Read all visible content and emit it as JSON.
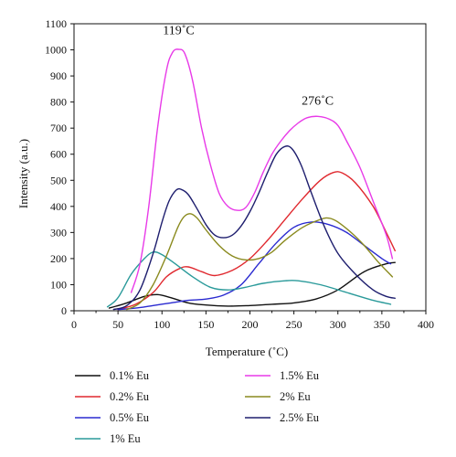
{
  "chart_data": {
    "type": "line",
    "xlabel": "Temperature (˚C)",
    "ylabel": "Intensity (a.u.)",
    "xlim": [
      0,
      400
    ],
    "ylim": [
      0,
      1100
    ],
    "xticks": [
      0,
      50,
      100,
      150,
      200,
      250,
      300,
      350,
      400
    ],
    "yticks": [
      0,
      100,
      200,
      300,
      400,
      500,
      600,
      700,
      800,
      900,
      1000,
      1100
    ],
    "grid": false,
    "legend_position": "bottom",
    "annotations": [
      {
        "text": "119˚C",
        "x": 119,
        "y": 1060
      },
      {
        "text": "276˚C",
        "x": 277,
        "y": 790
      }
    ],
    "series": [
      {
        "name": "0.1% Eu",
        "color": "#111111",
        "points": [
          [
            40,
            10
          ],
          [
            60,
            30
          ],
          [
            80,
            55
          ],
          [
            95,
            62
          ],
          [
            110,
            50
          ],
          [
            130,
            30
          ],
          [
            150,
            22
          ],
          [
            175,
            18
          ],
          [
            200,
            20
          ],
          [
            225,
            25
          ],
          [
            250,
            30
          ],
          [
            275,
            45
          ],
          [
            300,
            80
          ],
          [
            330,
            150
          ],
          [
            355,
            180
          ],
          [
            365,
            185
          ]
        ]
      },
      {
        "name": "0.2% Eu",
        "color": "#e0282e",
        "points": [
          [
            50,
            5
          ],
          [
            70,
            25
          ],
          [
            90,
            70
          ],
          [
            105,
            130
          ],
          [
            120,
            162
          ],
          [
            130,
            168
          ],
          [
            145,
            150
          ],
          [
            160,
            135
          ],
          [
            180,
            155
          ],
          [
            200,
            200
          ],
          [
            220,
            270
          ],
          [
            240,
            350
          ],
          [
            260,
            430
          ],
          [
            280,
            500
          ],
          [
            295,
            530
          ],
          [
            305,
            528
          ],
          [
            320,
            490
          ],
          [
            340,
            400
          ],
          [
            355,
            300
          ],
          [
            365,
            230
          ]
        ]
      },
      {
        "name": "0.5% Eu",
        "color": "#2a2ad0",
        "points": [
          [
            50,
            5
          ],
          [
            70,
            10
          ],
          [
            90,
            20
          ],
          [
            110,
            30
          ],
          [
            130,
            40
          ],
          [
            150,
            45
          ],
          [
            170,
            60
          ],
          [
            190,
            100
          ],
          [
            210,
            180
          ],
          [
            230,
            260
          ],
          [
            250,
            320
          ],
          [
            270,
            340
          ],
          [
            290,
            330
          ],
          [
            310,
            300
          ],
          [
            330,
            250
          ],
          [
            350,
            200
          ],
          [
            360,
            180
          ]
        ]
      },
      {
        "name": "1% Eu",
        "color": "#2a9a9a",
        "points": [
          [
            38,
            15
          ],
          [
            50,
            50
          ],
          [
            65,
            140
          ],
          [
            80,
            200
          ],
          [
            90,
            225
          ],
          [
            100,
            215
          ],
          [
            115,
            180
          ],
          [
            135,
            130
          ],
          [
            155,
            90
          ],
          [
            175,
            80
          ],
          [
            195,
            90
          ],
          [
            215,
            105
          ],
          [
            240,
            115
          ],
          [
            255,
            115
          ],
          [
            280,
            100
          ],
          [
            310,
            70
          ],
          [
            340,
            40
          ],
          [
            360,
            25
          ]
        ]
      },
      {
        "name": "1.5% Eu",
        "color": "#e83ae8",
        "points": [
          [
            65,
            70
          ],
          [
            75,
            180
          ],
          [
            85,
            400
          ],
          [
            95,
            700
          ],
          [
            105,
            920
          ],
          [
            112,
            990
          ],
          [
            119,
            1002
          ],
          [
            126,
            985
          ],
          [
            135,
            880
          ],
          [
            145,
            700
          ],
          [
            155,
            560
          ],
          [
            165,
            450
          ],
          [
            175,
            400
          ],
          [
            185,
            385
          ],
          [
            195,
            395
          ],
          [
            205,
            450
          ],
          [
            215,
            530
          ],
          [
            225,
            600
          ],
          [
            235,
            650
          ],
          [
            245,
            690
          ],
          [
            255,
            720
          ],
          [
            265,
            740
          ],
          [
            277,
            745
          ],
          [
            290,
            735
          ],
          [
            300,
            710
          ],
          [
            310,
            650
          ],
          [
            325,
            550
          ],
          [
            340,
            420
          ],
          [
            355,
            290
          ],
          [
            362,
            200
          ]
        ]
      },
      {
        "name": "2% Eu",
        "color": "#8a8a1e",
        "points": [
          [
            60,
            5
          ],
          [
            75,
            30
          ],
          [
            90,
            100
          ],
          [
            105,
            210
          ],
          [
            118,
            320
          ],
          [
            125,
            360
          ],
          [
            132,
            372
          ],
          [
            140,
            355
          ],
          [
            150,
            310
          ],
          [
            165,
            250
          ],
          [
            180,
            210
          ],
          [
            195,
            195
          ],
          [
            210,
            200
          ],
          [
            225,
            225
          ],
          [
            240,
            270
          ],
          [
            260,
            320
          ],
          [
            280,
            350
          ],
          [
            290,
            355
          ],
          [
            300,
            340
          ],
          [
            315,
            300
          ],
          [
            330,
            250
          ],
          [
            345,
            190
          ],
          [
            362,
            130
          ]
        ]
      },
      {
        "name": "2.5% Eu",
        "color": "#1e1e6e",
        "points": [
          [
            45,
            5
          ],
          [
            60,
            20
          ],
          [
            75,
            80
          ],
          [
            90,
            220
          ],
          [
            100,
            340
          ],
          [
            108,
            420
          ],
          [
            116,
            462
          ],
          [
            122,
            465
          ],
          [
            130,
            445
          ],
          [
            140,
            390
          ],
          [
            150,
            330
          ],
          [
            160,
            290
          ],
          [
            170,
            280
          ],
          [
            180,
            290
          ],
          [
            190,
            325
          ],
          [
            200,
            380
          ],
          [
            210,
            450
          ],
          [
            220,
            530
          ],
          [
            230,
            600
          ],
          [
            240,
            630
          ],
          [
            248,
            620
          ],
          [
            258,
            560
          ],
          [
            270,
            450
          ],
          [
            285,
            320
          ],
          [
            300,
            220
          ],
          [
            320,
            140
          ],
          [
            340,
            80
          ],
          [
            355,
            55
          ],
          [
            365,
            48
          ]
        ]
      }
    ]
  }
}
